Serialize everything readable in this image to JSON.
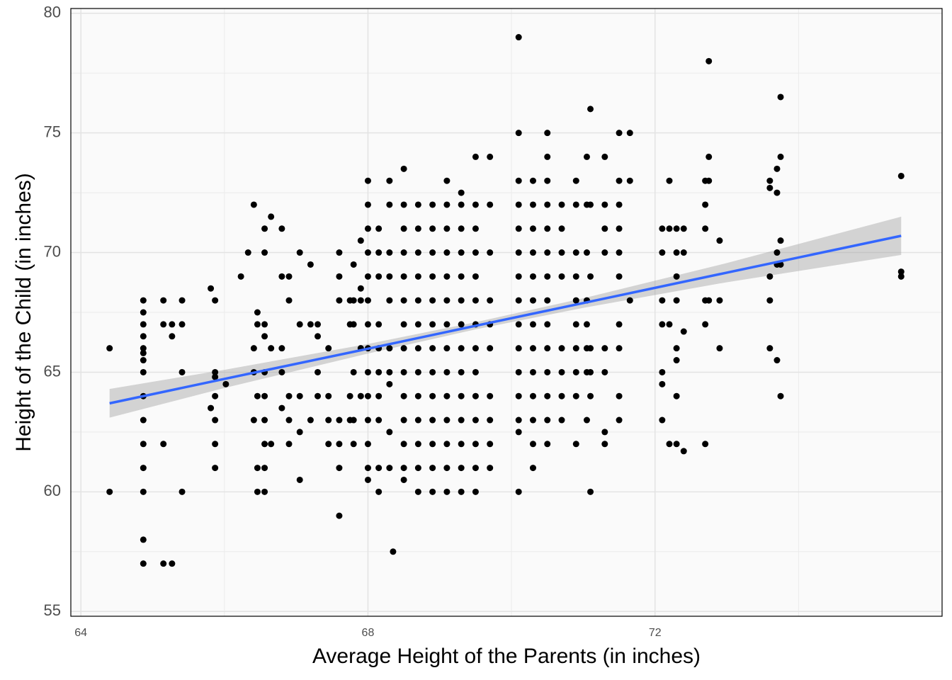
{
  "chart_data": {
    "type": "scatter",
    "x_label": "Average Height of the Parents (in inches)",
    "y_label": "Height of the Child (in inches)",
    "xlim": [
      63.86,
      76.0
    ],
    "ylim": [
      54.8,
      80.2
    ],
    "xticks": [
      64,
      68,
      72
    ],
    "yticks": [
      55,
      60,
      65,
      70,
      75,
      80
    ],
    "x_minor_ticks": [
      66,
      70,
      74
    ],
    "y_minor_ticks": [
      57.5,
      62.5,
      67.5,
      72.5,
      77.5
    ],
    "grid": true,
    "color": "#000000",
    "x": [
      64.4,
      64.4,
      64.87,
      64.87,
      64.87,
      64.87,
      64.87,
      64.87,
      64.87,
      64.87,
      64.87,
      64.87,
      64.87,
      64.87,
      64.87,
      64.87,
      64.87,
      65.15,
      65.15,
      65.15,
      65.15,
      65.27,
      65.27,
      65.27,
      65.41,
      65.41,
      65.41,
      65.41,
      65.81,
      65.81,
      65.87,
      65.87,
      65.87,
      65.87,
      65.87,
      65.87,
      65.87,
      66.02,
      66.23,
      66.33,
      66.41,
      66.41,
      66.41,
      66.41,
      66.46,
      66.46,
      66.46,
      66.46,
      66.46,
      66.56,
      66.56,
      66.56,
      66.56,
      66.56,
      66.56,
      66.56,
      66.56,
      66.56,
      66.56,
      66.65,
      66.65,
      66.65,
      66.8,
      66.8,
      66.8,
      66.8,
      66.8,
      66.9,
      66.9,
      66.9,
      66.9,
      66.9,
      67.05,
      67.05,
      67.05,
      67.05,
      67.05,
      67.2,
      67.2,
      67.2,
      67.3,
      67.3,
      67.3,
      67.3,
      67.45,
      67.45,
      67.45,
      67.45,
      67.6,
      67.6,
      67.6,
      67.6,
      67.6,
      67.6,
      67.6,
      67.75,
      67.75,
      67.75,
      67.75,
      67.8,
      67.8,
      67.8,
      67.8,
      67.8,
      67.8,
      67.9,
      67.9,
      67.9,
      67.9,
      67.9,
      68,
      68,
      68,
      68,
      68,
      68,
      68,
      68,
      68,
      68,
      68,
      68,
      68,
      68,
      68.15,
      68.15,
      68.15,
      68.15,
      68.15,
      68.15,
      68.15,
      68.15,
      68.15,
      68.15,
      68.3,
      68.3,
      68.3,
      68.3,
      68.3,
      68.3,
      68.3,
      68.3,
      68.3,
      68.3,
      68.35,
      68.5,
      68.5,
      68.5,
      68.5,
      68.5,
      68.5,
      68.5,
      68.5,
      68.5,
      68.5,
      68.5,
      68.5,
      68.5,
      68.5,
      68.7,
      68.7,
      68.7,
      68.7,
      68.7,
      68.7,
      68.7,
      68.7,
      68.7,
      68.7,
      68.7,
      68.7,
      68.7,
      68.9,
      68.9,
      68.9,
      68.9,
      68.9,
      68.9,
      68.9,
      68.9,
      68.9,
      68.9,
      68.9,
      68.9,
      68.9,
      69.1,
      69.1,
      69.1,
      69.1,
      69.1,
      69.1,
      69.1,
      69.1,
      69.1,
      69.1,
      69.1,
      69.1,
      69.1,
      69.1,
      69.3,
      69.3,
      69.3,
      69.3,
      69.3,
      69.3,
      69.3,
      69.3,
      69.3,
      69.3,
      69.3,
      69.3,
      69.3,
      69.3,
      69.5,
      69.5,
      69.5,
      69.5,
      69.5,
      69.5,
      69.5,
      69.5,
      69.5,
      69.5,
      69.5,
      69.5,
      69.5,
      69.5,
      69.7,
      69.7,
      69.7,
      69.7,
      69.7,
      69.7,
      69.7,
      69.7,
      69.7,
      69.7,
      70.1,
      70.1,
      70.1,
      70.1,
      70.1,
      70.1,
      70.1,
      70.1,
      70.1,
      70.1,
      70.1,
      70.1,
      70.1,
      70.1,
      70.1,
      70.3,
      70.3,
      70.3,
      70.3,
      70.3,
      70.3,
      70.3,
      70.3,
      70.3,
      70.3,
      70.3,
      70.3,
      70.3,
      70.5,
      70.5,
      70.5,
      70.5,
      70.5,
      70.5,
      70.5,
      70.5,
      70.5,
      70.5,
      70.5,
      70.5,
      70.5,
      70.5,
      70.7,
      70.7,
      70.7,
      70.7,
      70.7,
      70.7,
      70.7,
      70.7,
      70.9,
      70.9,
      70.9,
      70.9,
      70.9,
      70.9,
      70.9,
      70.9,
      70.9,
      70.9,
      71.05,
      71.05,
      71.05,
      71.05,
      71.05,
      71.05,
      71.05,
      71.05,
      71.1,
      71.1,
      71.1,
      71.1,
      71.1,
      71.1,
      71.1,
      71.3,
      71.3,
      71.3,
      71.3,
      71.3,
      71.3,
      71.3,
      71.3,
      71.5,
      71.5,
      71.5,
      71.5,
      71.5,
      71.5,
      71.5,
      71.5,
      71.5,
      71.5,
      71.65,
      71.65,
      71.65,
      72.1,
      72.1,
      72.1,
      72.1,
      72.1,
      72.1,
      72.1,
      72.2,
      72.2,
      72.2,
      72.2,
      72.3,
      72.3,
      72.3,
      72.3,
      72.3,
      72.3,
      72.3,
      72.3,
      72.4,
      72.4,
      72.4,
      72.4,
      72.7,
      72.7,
      72.7,
      72.7,
      72.7,
      72.7,
      72.75,
      72.75,
      72.75,
      72.75,
      72.9,
      72.9,
      72.9,
      73.6,
      73.6,
      73.6,
      73.6,
      73.6,
      73.7,
      73.7,
      73.7,
      73.7,
      73.7,
      73.75,
      73.75,
      73.75,
      73.75,
      73.75,
      75.43,
      75.43,
      75.43
    ],
    "values": [
      66,
      60,
      68,
      67.5,
      67,
      66.5,
      66,
      65.8,
      65.5,
      65,
      64,
      63,
      62,
      61,
      60,
      58,
      57,
      68,
      67,
      62,
      57,
      67,
      66.5,
      57,
      68,
      67,
      65,
      60,
      68.5,
      63.5,
      68,
      65,
      64.8,
      64,
      63,
      62,
      61,
      64.5,
      69,
      70,
      72,
      66,
      65,
      63,
      67.5,
      67,
      64,
      61,
      60,
      71,
      70,
      67,
      66.5,
      65,
      64,
      63,
      62,
      61,
      60,
      71.5,
      66,
      62,
      71,
      69,
      66,
      65,
      63.5,
      69,
      68,
      64,
      63,
      62,
      70,
      67,
      64,
      62.5,
      60.5,
      69.5,
      67,
      63,
      67,
      66.5,
      65,
      64,
      66,
      64,
      63,
      62,
      70,
      69,
      68,
      63,
      62,
      61,
      59,
      68,
      67,
      64,
      63,
      69.5,
      68,
      67,
      65,
      63,
      62,
      70.5,
      68.5,
      68,
      66,
      64,
      73,
      72,
      71,
      70,
      69,
      68,
      67,
      66,
      65,
      64,
      63,
      62,
      61,
      60.5,
      71,
      70,
      69,
      67,
      66,
      65,
      64,
      63,
      61,
      60,
      73,
      72,
      70,
      69,
      68,
      66,
      65,
      64.5,
      62.5,
      61,
      57.5,
      73.5,
      72,
      71,
      70,
      69,
      68,
      67,
      66,
      65,
      64,
      63,
      62,
      61,
      60.5,
      72,
      71,
      70,
      69,
      68,
      67,
      66,
      65,
      64,
      63,
      62,
      61,
      60,
      72,
      71,
      70,
      69,
      68,
      67,
      66,
      65,
      64,
      63,
      62,
      61,
      60,
      73,
      72,
      71,
      70,
      69,
      68,
      67,
      66,
      65,
      64,
      63,
      62,
      61,
      60,
      72.5,
      72,
      71,
      70,
      69,
      68,
      67,
      66,
      65,
      64,
      63,
      62,
      61,
      60,
      74,
      72,
      71,
      70,
      69,
      68,
      67,
      66,
      65,
      64,
      63,
      62,
      61,
      60,
      74,
      72,
      70,
      68,
      67,
      66,
      64,
      63,
      62,
      61,
      79,
      75,
      73,
      72,
      71,
      70,
      69,
      68,
      67,
      66,
      65,
      64,
      63,
      62.5,
      60,
      73,
      72,
      71,
      70,
      69,
      68,
      67,
      66,
      65,
      64,
      63,
      62,
      61,
      75,
      74,
      73,
      72,
      71,
      70,
      69,
      68,
      67,
      66,
      65,
      64,
      63,
      62,
      72,
      71,
      70,
      69,
      66,
      65,
      64,
      63,
      73,
      72,
      70,
      69,
      68,
      67,
      66,
      65,
      64,
      62,
      74,
      72,
      70,
      68,
      67,
      66,
      65,
      63,
      76,
      72,
      69,
      66,
      65,
      64,
      60,
      74,
      72,
      71,
      70,
      66,
      65,
      62.5,
      62,
      75,
      73,
      72,
      71,
      70,
      69,
      67,
      66,
      64,
      63,
      75,
      73,
      68,
      71,
      70,
      68,
      67,
      65,
      64.5,
      63,
      73,
      71,
      67,
      62,
      71,
      70,
      69,
      68,
      66,
      65.5,
      64,
      62,
      71,
      70,
      66.7,
      61.7,
      73,
      72,
      71,
      68,
      67,
      62,
      78,
      74,
      73,
      68,
      70.5,
      68,
      66,
      73,
      72.7,
      69,
      68,
      66,
      73.5,
      72.5,
      70,
      69.5,
      65.5,
      76.5,
      74,
      70.5,
      69.5,
      64,
      73.2,
      69.2,
      69
    ],
    "fit": {
      "color": "#3366ff",
      "band_color": "#999999",
      "x": [
        64.4,
        66,
        68,
        69.5,
        71,
        73,
        75.43
      ],
      "y": [
        63.7,
        64.72,
        65.98,
        66.94,
        67.89,
        69.16,
        70.7
      ],
      "lower": [
        63.1,
        64.34,
        65.78,
        66.79,
        67.69,
        68.76,
        69.9
      ],
      "upper": [
        64.3,
        65.1,
        66.18,
        67.09,
        68.09,
        69.56,
        71.5
      ]
    }
  }
}
